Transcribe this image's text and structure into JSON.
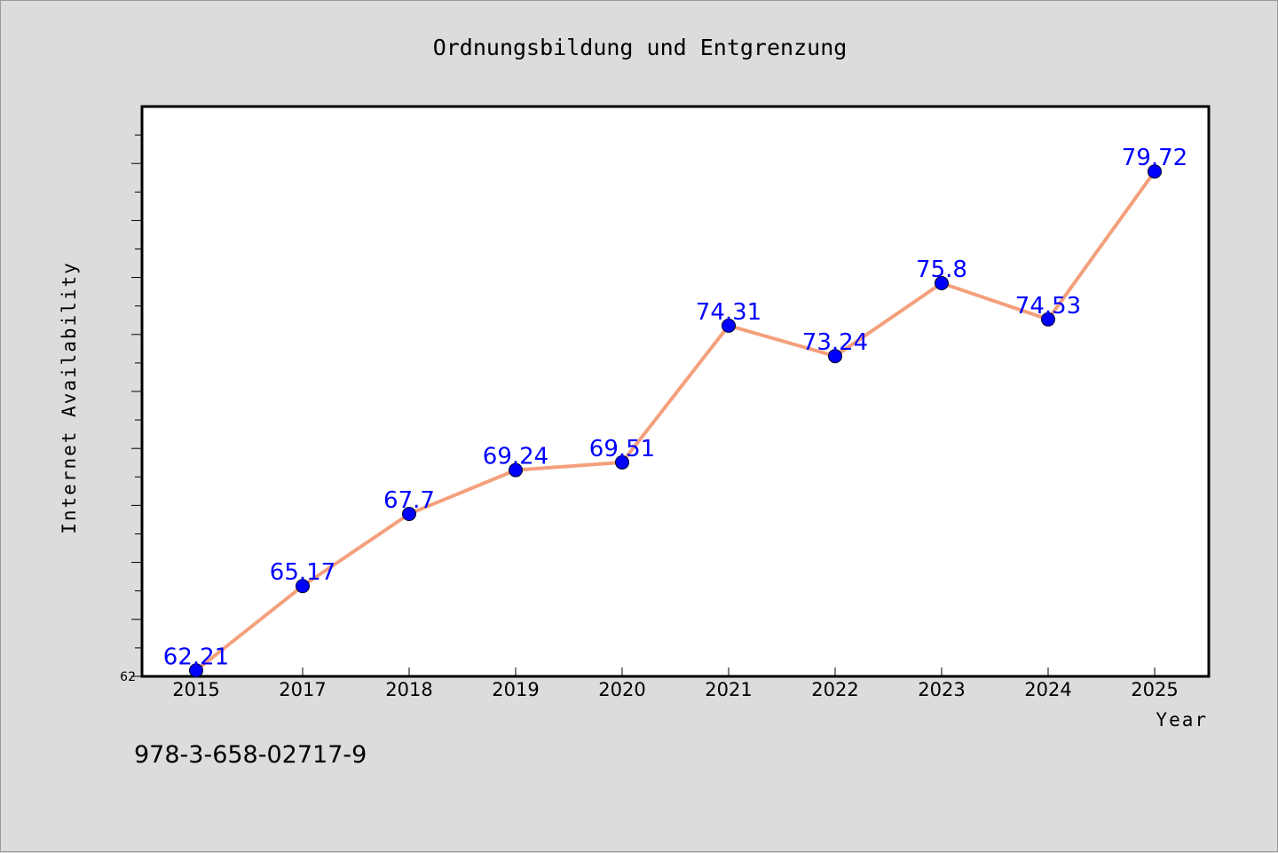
{
  "chart_data": {
    "type": "line",
    "title": "Ordnungsbildung und Entgrenzung",
    "xlabel": "Year",
    "ylabel": "Internet Availability",
    "categories": [
      "2015",
      "2017",
      "2018",
      "2019",
      "2020",
      "2021",
      "2022",
      "2023",
      "2024",
      "2025"
    ],
    "series": [
      {
        "values": [
          62.21,
          65.17,
          67.7,
          69.24,
          69.51,
          74.31,
          73.24,
          75.8,
          74.53,
          79.72
        ],
        "labels": [
          "62.21",
          "65.17",
          "67.7",
          "69.24",
          "69.51",
          "74.31",
          "73.24",
          "75.8",
          "74.53",
          "79.72"
        ]
      }
    ],
    "ylim": [
      62,
      82
    ],
    "yticks_labeled": [
      "62"
    ],
    "grid": false,
    "legend": "none",
    "colors": {
      "line": "#f4a07c",
      "marker": "#0000ff",
      "data_label": "#0000ff",
      "background": "#dcdcdc",
      "plot_background": "#ffffff"
    }
  },
  "footnote": "978-3-658-02717-9"
}
